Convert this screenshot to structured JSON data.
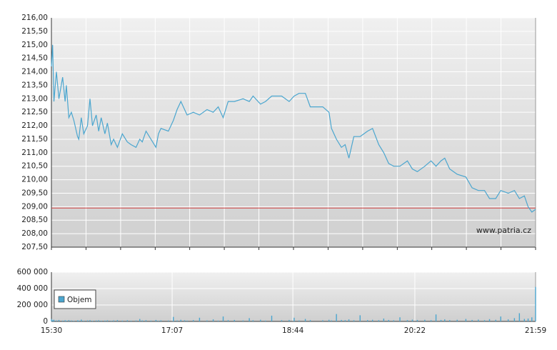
{
  "chart_data": [
    {
      "type": "line",
      "watermark": "www.patria.cz",
      "xlim": [
        930,
        1319
      ],
      "xgrid_ticks": [
        930,
        957.8,
        985.6,
        1013.4,
        1041.1,
        1068.9,
        1096.7,
        1124.5,
        1152.3,
        1180.1,
        1207.9,
        1235.6,
        1263.4,
        1291.2,
        1319
      ],
      "ylim": [
        207.5,
        216
      ],
      "yticks": [
        {
          "value": 207.5,
          "label": "207,50"
        },
        {
          "value": 208,
          "label": "208,00"
        },
        {
          "value": 208.5,
          "label": "208,50"
        },
        {
          "value": 209,
          "label": "209,00"
        },
        {
          "value": 209.5,
          "label": "209,50"
        },
        {
          "value": 210,
          "label": "210,00"
        },
        {
          "value": 210.5,
          "label": "210,50"
        },
        {
          "value": 211,
          "label": "211,00"
        },
        {
          "value": 211.5,
          "label": "211,50"
        },
        {
          "value": 212,
          "label": "212,00"
        },
        {
          "value": 212.5,
          "label": "212,50"
        },
        {
          "value": 213,
          "label": "213,00"
        },
        {
          "value": 213.5,
          "label": "213,50"
        },
        {
          "value": 214,
          "label": "214,00"
        },
        {
          "value": 214.5,
          "label": "214,50"
        },
        {
          "value": 215,
          "label": "215,00"
        },
        {
          "value": 215.5,
          "label": "215,50"
        },
        {
          "value": 216,
          "label": "216,00"
        }
      ],
      "grid": true,
      "reference_line": {
        "value": 208.95,
        "color": "#d04040"
      },
      "x": [
        930,
        931,
        932,
        934,
        936,
        939,
        941,
        942,
        944,
        946,
        948,
        951,
        952,
        954,
        956,
        959,
        961,
        963,
        966,
        968,
        970,
        973,
        975,
        978,
        980,
        983,
        987,
        991,
        994,
        998,
        1001,
        1003,
        1006,
        1010,
        1014,
        1016,
        1018,
        1024,
        1028,
        1031,
        1034,
        1037,
        1039,
        1044,
        1049,
        1055,
        1060,
        1064,
        1068,
        1072,
        1077,
        1084,
        1089,
        1092,
        1098,
        1102,
        1107,
        1115,
        1121,
        1125,
        1129,
        1134,
        1138,
        1148,
        1153,
        1155,
        1159,
        1163,
        1166,
        1169,
        1173,
        1178,
        1184,
        1188,
        1193,
        1197,
        1201,
        1205,
        1210,
        1216,
        1220,
        1224,
        1230,
        1235,
        1239,
        1243,
        1246,
        1250,
        1256,
        1263,
        1268,
        1273,
        1278,
        1282,
        1287,
        1291,
        1297,
        1302,
        1306,
        1310,
        1313,
        1316,
        1319
      ],
      "series": [
        {
          "color": "#4ba6cf",
          "values": [
            214.2,
            215.0,
            212.9,
            214.0,
            213.0,
            213.8,
            212.9,
            213.5,
            212.3,
            212.5,
            212.2,
            211.6,
            211.5,
            212.3,
            211.7,
            212.0,
            213.0,
            212.0,
            212.4,
            211.8,
            212.3,
            211.7,
            212.1,
            211.3,
            211.5,
            211.2,
            211.7,
            211.4,
            211.3,
            211.2,
            211.5,
            211.4,
            211.8,
            211.5,
            211.2,
            211.7,
            211.9,
            211.8,
            212.2,
            212.6,
            212.9,
            212.6,
            212.4,
            212.5,
            212.4,
            212.6,
            212.5,
            212.7,
            212.3,
            212.9,
            212.9,
            213.0,
            212.9,
            213.1,
            212.8,
            212.9,
            213.1,
            213.1,
            212.9,
            213.1,
            213.2,
            213.2,
            212.7,
            212.7,
            212.5,
            211.9,
            211.5,
            211.2,
            211.3,
            210.8,
            211.6,
            211.6,
            211.8,
            211.9,
            211.3,
            211.0,
            210.6,
            210.5,
            210.5,
            210.7,
            210.4,
            210.3,
            210.5,
            210.7,
            210.5,
            210.7,
            210.8,
            210.4,
            210.2,
            210.1,
            209.7,
            209.6,
            209.6,
            209.3,
            209.3,
            209.6,
            209.5,
            209.6,
            209.3,
            209.4,
            209.0,
            208.8,
            208.9
          ]
        }
      ]
    },
    {
      "type": "bar",
      "xlim": [
        930,
        1319
      ],
      "xticks": [
        {
          "value": 930,
          "label": "15:30"
        },
        {
          "value": 1027,
          "label": "17:07"
        },
        {
          "value": 1124,
          "label": "18:44"
        },
        {
          "value": 1222,
          "label": "20:22"
        },
        {
          "value": 1319,
          "label": "21:59"
        }
      ],
      "ylim": [
        0,
        600000
      ],
      "yticks": [
        {
          "value": 0,
          "label": "0"
        },
        {
          "value": 200000,
          "label": "200 000"
        },
        {
          "value": 400000,
          "label": "400 000"
        },
        {
          "value": 600000,
          "label": "600 000"
        }
      ],
      "grid": true,
      "x": [
        930,
        931,
        932,
        934,
        936,
        939,
        941,
        942,
        944,
        946,
        948,
        951,
        952,
        954,
        956,
        959,
        961,
        963,
        966,
        968,
        970,
        973,
        975,
        978,
        980,
        983,
        987,
        991,
        994,
        998,
        1001,
        1003,
        1006,
        1010,
        1014,
        1016,
        1018,
        1024,
        1028,
        1031,
        1034,
        1037,
        1039,
        1044,
        1049,
        1055,
        1060,
        1064,
        1068,
        1072,
        1077,
        1084,
        1089,
        1092,
        1098,
        1102,
        1107,
        1115,
        1121,
        1125,
        1129,
        1134,
        1138,
        1148,
        1153,
        1155,
        1159,
        1163,
        1166,
        1169,
        1173,
        1178,
        1184,
        1188,
        1193,
        1197,
        1201,
        1205,
        1210,
        1216,
        1220,
        1224,
        1230,
        1235,
        1239,
        1243,
        1246,
        1250,
        1256,
        1263,
        1268,
        1273,
        1278,
        1282,
        1287,
        1291,
        1297,
        1302,
        1306,
        1310,
        1313,
        1316,
        1319
      ],
      "series": [
        {
          "name": "Objem",
          "color": "#4ba6cf",
          "values": [
            30000,
            15000,
            20000,
            12000,
            18000,
            10000,
            14000,
            9000,
            16000,
            11000,
            8000,
            13000,
            10000,
            22000,
            9000,
            12000,
            15000,
            8000,
            11000,
            14000,
            9000,
            10000,
            13000,
            8000,
            12000,
            16000,
            10000,
            14000,
            9000,
            11000,
            30000,
            12000,
            15000,
            10000,
            18000,
            9000,
            13000,
            11000,
            55000,
            12000,
            20000,
            14000,
            10000,
            16000,
            45000,
            12000,
            25000,
            10000,
            60000,
            15000,
            18000,
            12000,
            40000,
            14000,
            20000,
            10000,
            70000,
            15000,
            18000,
            45000,
            12000,
            30000,
            16000,
            14000,
            20000,
            12000,
            90000,
            18000,
            15000,
            25000,
            14000,
            75000,
            16000,
            20000,
            15000,
            35000,
            18000,
            14000,
            50000,
            16000,
            22000,
            18000,
            20000,
            15000,
            85000,
            18000,
            25000,
            16000,
            20000,
            30000,
            18000,
            22000,
            15000,
            28000,
            20000,
            60000,
            25000,
            40000,
            100000,
            30000,
            35000,
            50000,
            420000
          ]
        }
      ]
    }
  ]
}
